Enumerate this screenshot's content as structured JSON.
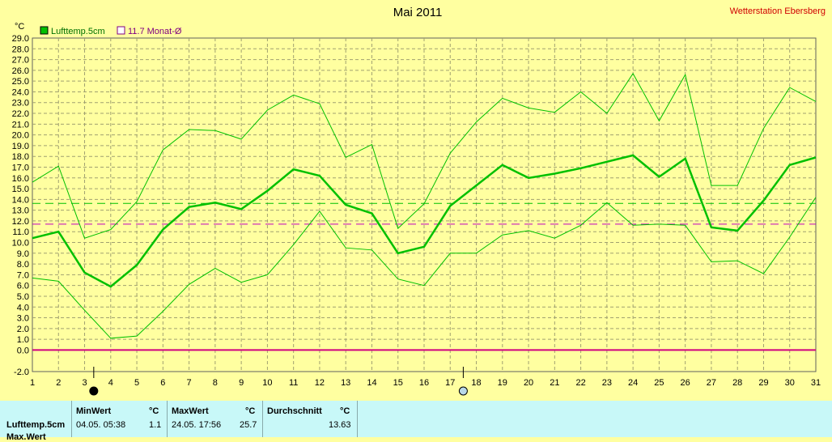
{
  "chart_data": {
    "type": "line",
    "title": "Mai 2011",
    "station": "Wetterstation Ebersberg",
    "yunit": "°C",
    "ylim": [
      -2.0,
      29.0
    ],
    "yticks": [
      "29.0",
      "28.0",
      "27.0",
      "26.0",
      "25.0",
      "24.0",
      "23.0",
      "22.0",
      "21.0",
      "20.0",
      "19.0",
      "18.0",
      "17.0",
      "16.0",
      "15.0",
      "14.0",
      "13.0",
      "12.0",
      "11.0",
      "10.0",
      "9.0",
      "8.0",
      "7.0",
      "6.0",
      "5.0",
      "4.0",
      "3.0",
      "2.0",
      "1.0",
      "0.0",
      "-2.0"
    ],
    "x": [
      1,
      2,
      3,
      4,
      5,
      6,
      7,
      8,
      9,
      10,
      11,
      12,
      13,
      14,
      15,
      16,
      17,
      18,
      19,
      20,
      21,
      22,
      23,
      24,
      25,
      26,
      27,
      28,
      29,
      30,
      31
    ],
    "grid": true,
    "legend": [
      {
        "label": "Lufttemp.5cm",
        "color": "#00c000"
      },
      {
        "label": "11.7 Monat-Ø",
        "color": "#c000c0"
      }
    ],
    "series": [
      {
        "name": "Lufttemp.5cm",
        "color": "#00c000",
        "width": 2.5,
        "values": [
          10.4,
          11.0,
          7.2,
          5.9,
          7.9,
          11.2,
          13.3,
          13.7,
          13.1,
          14.8,
          16.8,
          16.2,
          13.5,
          12.7,
          9.0,
          9.6,
          13.4,
          15.3,
          17.2,
          16.0,
          16.4,
          16.9,
          17.5,
          18.1,
          16.1,
          17.8,
          11.4,
          11.1,
          13.9,
          17.2,
          17.9
        ]
      },
      {
        "name": "Max",
        "color": "#00c000",
        "width": 1,
        "values": [
          15.6,
          17.1,
          10.4,
          11.2,
          13.8,
          18.6,
          20.5,
          20.4,
          19.6,
          22.3,
          23.7,
          22.9,
          17.9,
          19.1,
          11.3,
          13.6,
          18.3,
          21.2,
          23.4,
          22.5,
          22.1,
          24.0,
          22.0,
          25.7,
          21.3,
          25.6,
          15.3,
          15.3,
          20.6,
          24.4,
          23.1
        ]
      },
      {
        "name": "Min",
        "color": "#00c000",
        "width": 1,
        "values": [
          6.7,
          6.4,
          3.7,
          1.1,
          1.3,
          3.6,
          6.1,
          7.6,
          6.3,
          7.0,
          9.8,
          12.9,
          9.5,
          9.3,
          6.6,
          6.0,
          9.0,
          9.0,
          10.7,
          11.1,
          10.4,
          11.6,
          13.7,
          11.6,
          11.7,
          11.6,
          8.2,
          8.3,
          7.1,
          10.5,
          14.2
        ]
      }
    ],
    "reference_lines": [
      {
        "value": 11.7,
        "color": "#c000c0",
        "style": "dashed"
      },
      {
        "value": 13.63,
        "color": "#00c000",
        "style": "dashed"
      },
      {
        "value": 0.0,
        "color": "#d0007f",
        "style": "solid"
      }
    ],
    "markers": [
      {
        "x": 3.35,
        "label": "new-moon",
        "fill": "#000000"
      },
      {
        "x": 17.5,
        "label": "full-moon",
        "fill": "#b8d8e8"
      }
    ]
  },
  "stats": {
    "row_label": "Lufttemp.5cm",
    "row_label2": "Max.Wert",
    "min_header": "MinWert",
    "min_unit": "°C",
    "min_time": "04.05.  05:38",
    "min_value": "1.1",
    "max_header": "MaxWert",
    "max_unit": "°C",
    "max_time": "24.05.  17:56",
    "max_value": "25.7",
    "avg_header": "Durchschnitt",
    "avg_unit": "°C",
    "avg_value": "13.63"
  }
}
